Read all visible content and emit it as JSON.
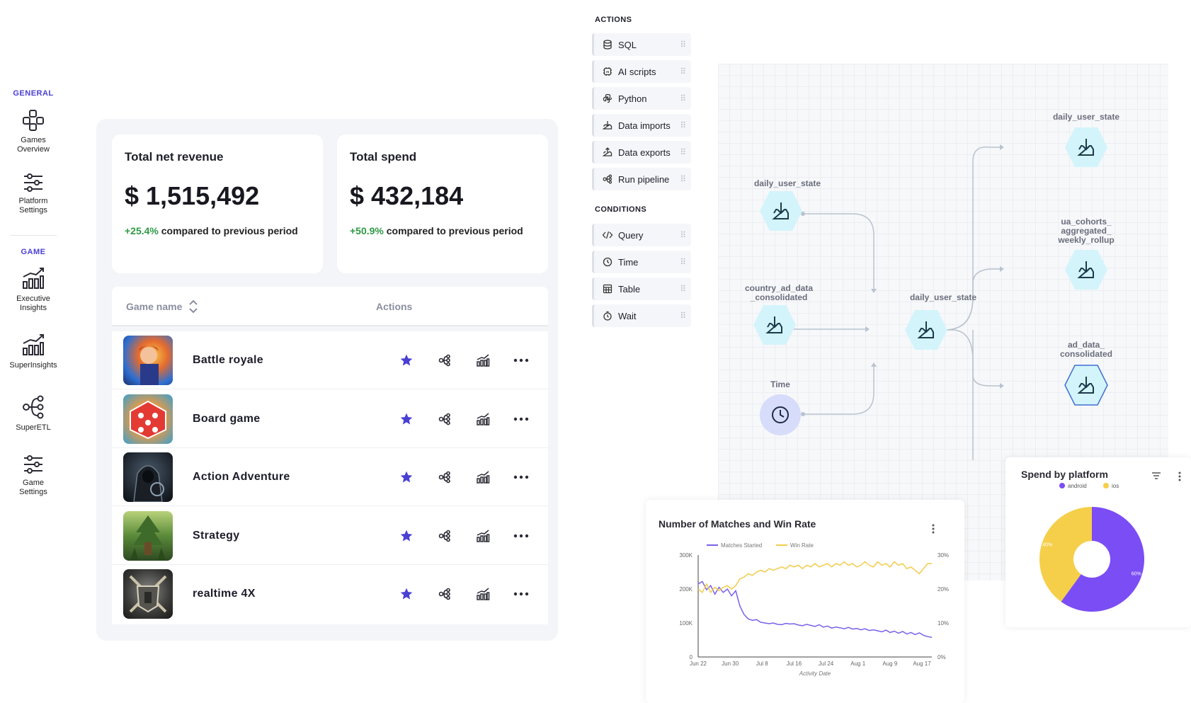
{
  "sidebar": {
    "general_label": "GENERAL",
    "game_label": "GAME",
    "items": [
      {
        "label1": "Games",
        "label2": "Overview"
      },
      {
        "label1": "Platform",
        "label2": "Settings"
      },
      {
        "label1": "Executive",
        "label2": "Insights"
      },
      {
        "label1": "SuperInsights",
        "label2": ""
      },
      {
        "label1": "SuperETL",
        "label2": ""
      },
      {
        "label1": "Game",
        "label2": "Settings"
      }
    ]
  },
  "kpis": [
    {
      "title": "Total net revenue",
      "value": "$ 1,515,492",
      "pct": "+25.4%",
      "suffix": "compared to previous period"
    },
    {
      "title": "Total spend",
      "value": "$ 432,184",
      "pct": "+50.9%",
      "suffix": "compared to previous period"
    }
  ],
  "games_table": {
    "col_name": "Game name",
    "col_actions": "Actions",
    "rows": [
      {
        "name": "Battle royale"
      },
      {
        "name": "Board game"
      },
      {
        "name": "Action Adventure"
      },
      {
        "name": "Strategy"
      },
      {
        "name": "realtime 4X"
      }
    ]
  },
  "palette": {
    "actions_label": "ACTIONS",
    "conditions_label": "CONDITIONS",
    "actions": [
      {
        "label": "SQL",
        "icon": "database-icon"
      },
      {
        "label": "AI scripts",
        "icon": "ai-chip-icon"
      },
      {
        "label": "Python",
        "icon": "python-icon"
      },
      {
        "label": "Data imports",
        "icon": "import-icon"
      },
      {
        "label": "Data exports",
        "icon": "export-icon"
      },
      {
        "label": "Run pipeline",
        "icon": "pipeline-icon"
      }
    ],
    "conditions": [
      {
        "label": "Query",
        "icon": "code-icon"
      },
      {
        "label": "Time",
        "icon": "clock-icon"
      },
      {
        "label": "Table",
        "icon": "table-icon"
      },
      {
        "label": "Wait",
        "icon": "stopwatch-icon"
      }
    ]
  },
  "pipeline": {
    "nodes": {
      "n1": "daily_user_state",
      "n2a": "country_ad_data",
      "n2b": "_consolidated",
      "n3": "Time",
      "n4": "daily_user_state",
      "n5": "daily_user_state",
      "n6a": "ua_cohorts_",
      "n6b": "aggregated_",
      "n6c": "weekly_rollup",
      "n7a": "ad_data_",
      "n7b": "consolidated"
    }
  },
  "line_chart": {
    "title": "Number of Matches and Win Rate",
    "chart_data": {
      "type": "line",
      "xlabel": "Activity Date",
      "x_ticks": [
        "Jun 22",
        "Jun 30",
        "Jul 8",
        "Jul 16",
        "Jul 24",
        "Aug 1",
        "Aug 9",
        "Aug 17"
      ],
      "y_left_ticks": [
        "0",
        "100K",
        "200K",
        "300K"
      ],
      "y_right_ticks": [
        "0%",
        "10%",
        "20%",
        "30%"
      ],
      "series": [
        {
          "name": "Matches Started",
          "color": "#7b61e8",
          "axis": "left",
          "values": [
            215000,
            222000,
            198000,
            210000,
            185000,
            205000,
            190000,
            200000,
            180000,
            195000,
            150000,
            125000,
            112000,
            108000,
            110000,
            102000,
            100000,
            98000,
            100000,
            96000,
            95000,
            99000,
            97000,
            98000,
            94000,
            92000,
            96000,
            93000,
            90000,
            95000,
            88000,
            91000,
            85000,
            88000,
            86000,
            83000,
            87000,
            82000,
            84000,
            80000,
            83000,
            78000,
            80000,
            77000,
            74000,
            79000,
            72000,
            76000,
            70000,
            75000,
            68000,
            72000,
            66000,
            71000,
            64000,
            60000,
            58000
          ]
        },
        {
          "name": "Win Rate",
          "color": "#f2cc4a",
          "axis": "right",
          "values": [
            20.0,
            19.0,
            21.5,
            19.0,
            20.5,
            19.5,
            20.5,
            21.0,
            20.0,
            21.0,
            23.0,
            23.5,
            24.5,
            24.0,
            25.0,
            25.5,
            25.0,
            26.0,
            25.5,
            26.0,
            26.5,
            26.0,
            27.0,
            26.5,
            27.0,
            26.0,
            27.0,
            26.5,
            27.5,
            26.5,
            27.0,
            27.5,
            26.5,
            27.5,
            27.0,
            28.0,
            27.0,
            27.5,
            26.5,
            27.0,
            28.0,
            27.0,
            26.5,
            28.0,
            27.0,
            27.5,
            26.5,
            28.0,
            27.0,
            27.5,
            26.0,
            26.5,
            25.5,
            24.5,
            26.0,
            27.5,
            27.5
          ]
        }
      ]
    }
  },
  "pie_chart": {
    "title": "Spend by platform",
    "chart_data": {
      "type": "pie",
      "donut": true,
      "categories": [
        "android",
        "ios"
      ],
      "values": [
        60,
        40
      ],
      "labels": [
        "60%",
        "40%"
      ],
      "colors": [
        "#7b4df5",
        "#f5cf4a"
      ]
    }
  },
  "colors": {
    "accent": "#4a3fd3",
    "positive": "#2e9a45",
    "node_fill": "#d3f4fb",
    "node_icon": "#1d3a4a"
  }
}
